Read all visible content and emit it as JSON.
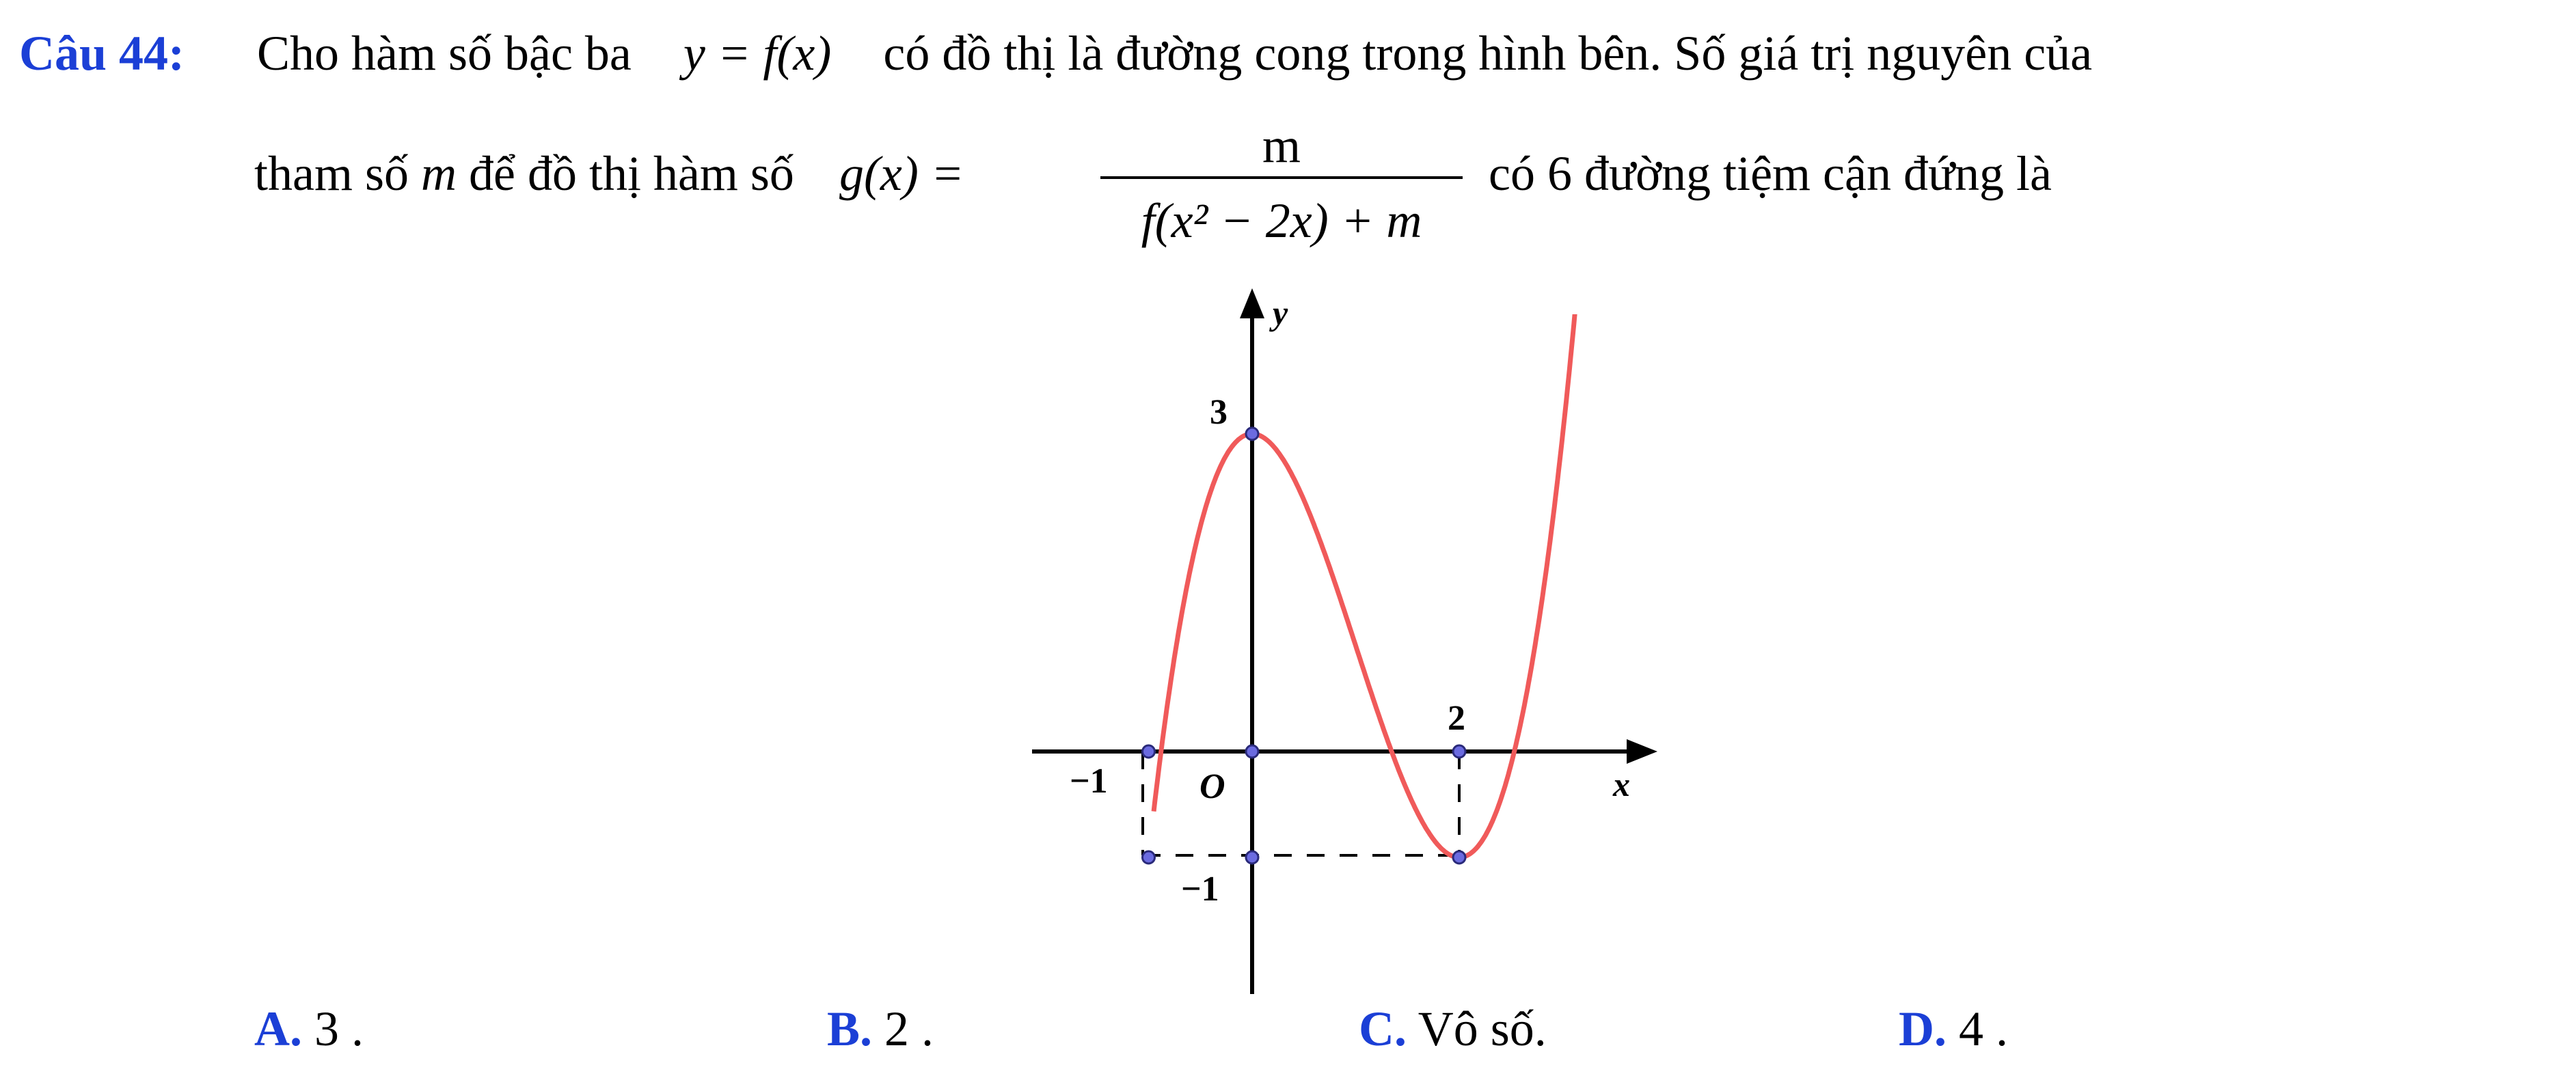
{
  "question": {
    "label": "Câu 44:",
    "line1_text": "Cho hàm số bậc ba",
    "line1_func": "y = f(x)",
    "line1_rest": "có đồ thị là đường cong trong hình bên. Số giá trị nguyên của",
    "line2_prefix": "tham số",
    "param": "m",
    "line2_mid": "để đồ thị hàm số",
    "g_lhs": "g(x) =",
    "numerator": "m",
    "denominator": "f(x² − 2x) + m",
    "line2_suffix": "có 6 đường tiệm cận đứng là"
  },
  "graph": {
    "axis_x_label": "x",
    "axis_y_label": "y",
    "origin_label": "O",
    "tick_neg1_x": "−1",
    "tick_2_x": "2",
    "tick_3_y": "3",
    "tick_neg1_y": "−1",
    "curve_color": "#f05a5a",
    "point_color": "#6b6be0"
  },
  "options": [
    {
      "letter": "A.",
      "text": "3 ."
    },
    {
      "letter": "B.",
      "text": "2 ."
    },
    {
      "letter": "C.",
      "text": "Vô số."
    },
    {
      "letter": "D.",
      "text": "4 ."
    }
  ]
}
